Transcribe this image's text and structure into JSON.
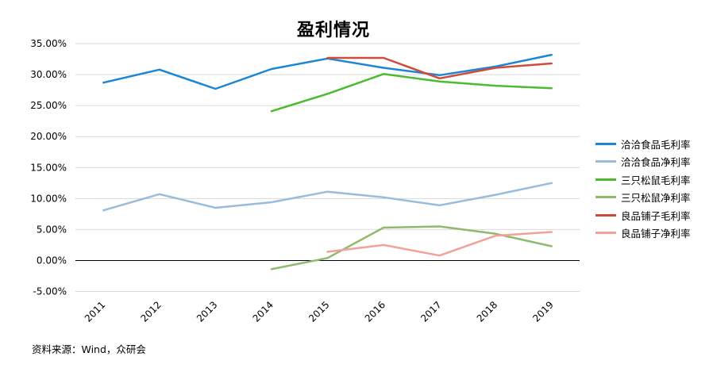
{
  "chart_data": {
    "type": "line",
    "title": "盈利情况",
    "categories": [
      "2011",
      "2012",
      "2013",
      "2014",
      "2015",
      "2016",
      "2017",
      "2018",
      "2019"
    ],
    "y_tick_labels": [
      "35.00%",
      "30.00%",
      "25.00%",
      "20.00%",
      "15.00%",
      "10.00%",
      "5.00%",
      "0.00%",
      "-5.00%"
    ],
    "ylim": [
      -5,
      35
    ],
    "grid": true,
    "legend_position": "right",
    "series": [
      {
        "name": "洽洽食品毛利率",
        "color": "#1a86d6",
        "values": [
          28.7,
          30.8,
          27.7,
          30.9,
          32.6,
          31.1,
          29.9,
          31.3,
          33.2
        ]
      },
      {
        "name": "洽洽食品净利率",
        "color": "#98bcdc",
        "values": [
          8.1,
          10.7,
          8.5,
          9.4,
          11.1,
          10.2,
          8.9,
          10.6,
          12.5
        ]
      },
      {
        "name": "三只松鼠毛利率",
        "color": "#4cbb2e",
        "values": [
          null,
          null,
          null,
          24.1,
          26.9,
          30.1,
          28.9,
          28.2,
          27.8
        ]
      },
      {
        "name": "三只松鼠净利率",
        "color": "#8fba6e",
        "values": [
          null,
          null,
          null,
          -1.4,
          0.4,
          5.3,
          5.5,
          4.3,
          2.3
        ]
      },
      {
        "name": "良品铺子毛利率",
        "color": "#d24a3a",
        "values": [
          null,
          null,
          null,
          null,
          32.7,
          32.7,
          29.4,
          31.1,
          31.8
        ]
      },
      {
        "name": "良品铺子净利率",
        "color": "#f3a198",
        "values": [
          null,
          null,
          null,
          null,
          1.4,
          2.5,
          0.8,
          4.0,
          4.6
        ]
      }
    ]
  },
  "footer": {
    "source": "资料来源：Wind，众研会"
  }
}
